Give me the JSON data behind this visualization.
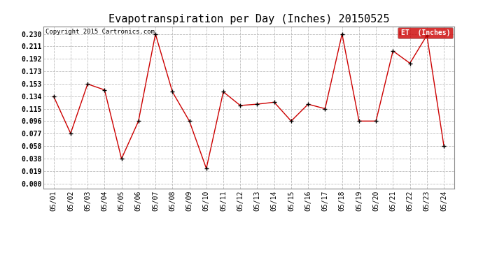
{
  "title": "Evapotranspiration per Day (Inches) 20150525",
  "copyright": "Copyright 2015 Cartronics.com",
  "legend_label": "ET  (Inches)",
  "dates": [
    "05/01",
    "05/02",
    "05/03",
    "05/04",
    "05/05",
    "05/06",
    "05/07",
    "05/08",
    "05/09",
    "05/10",
    "05/11",
    "05/12",
    "05/13",
    "05/14",
    "05/15",
    "05/16",
    "05/17",
    "05/18",
    "05/19",
    "05/20",
    "05/21",
    "05/22",
    "05/23",
    "05/24"
  ],
  "values": [
    0.134,
    0.077,
    0.153,
    0.144,
    0.038,
    0.096,
    0.23,
    0.141,
    0.096,
    0.023,
    0.141,
    0.12,
    0.122,
    0.125,
    0.096,
    0.122,
    0.115,
    0.23,
    0.096,
    0.096,
    0.204,
    0.185,
    0.228,
    0.058
  ],
  "line_color": "#cc0000",
  "marker_color": "#000000",
  "background_color": "#ffffff",
  "grid_color": "#bbbbbb",
  "yticks": [
    0.0,
    0.019,
    0.038,
    0.058,
    0.077,
    0.096,
    0.115,
    0.134,
    0.153,
    0.173,
    0.192,
    0.211,
    0.23
  ],
  "ylim": [
    -0.008,
    0.242
  ],
  "title_fontsize": 11,
  "tick_fontsize": 7,
  "legend_bg": "#cc0000",
  "legend_fg": "#ffffff"
}
